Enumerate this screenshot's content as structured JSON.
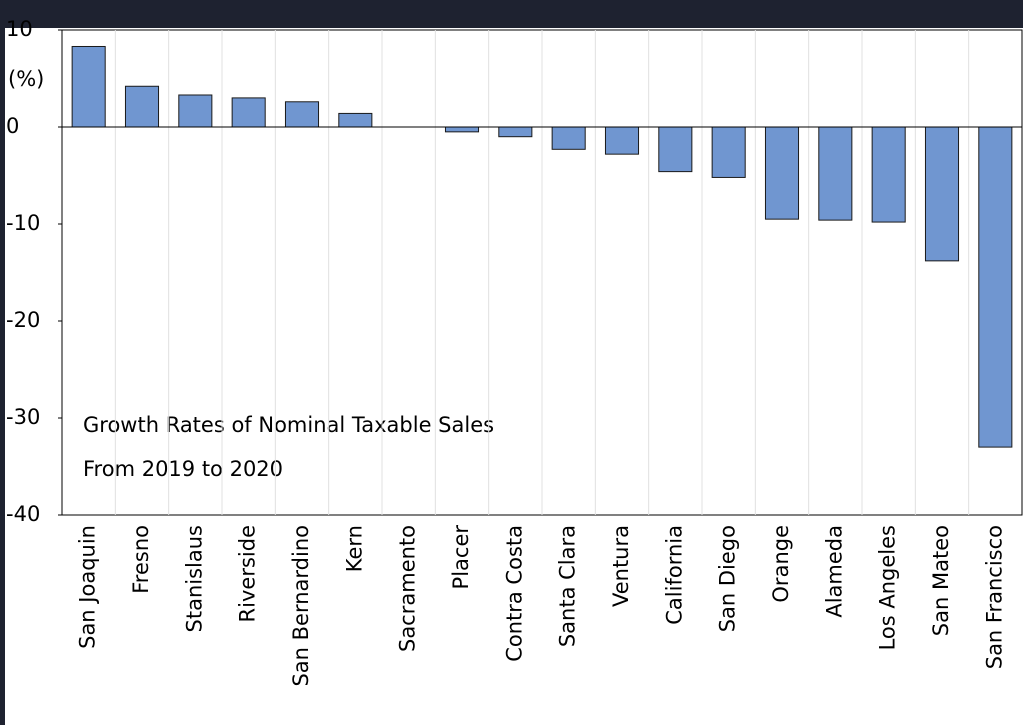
{
  "chart_data": {
    "type": "bar",
    "title": [
      "Growth Rates of Nominal Taxable Sales",
      "From 2019 to 2020"
    ],
    "y_label": "(%)",
    "categories": [
      "San Joaquin",
      "Fresno",
      "Stanislaus",
      "Riverside",
      "San Bernardino",
      "Kern",
      "Sacramento",
      "Placer",
      "Contra Costa",
      "Santa Clara",
      "Ventura",
      "California",
      "San Diego",
      "Orange",
      "Alameda",
      "Los Angeles",
      "San Mateo",
      "San Francisco"
    ],
    "values": [
      8.3,
      4.2,
      3.3,
      3.0,
      2.6,
      1.4,
      0,
      -0.5,
      -1.0,
      -2.3,
      -2.8,
      -4.6,
      -5.2,
      -9.5,
      -9.6,
      -9.8,
      -13.8,
      -33.0
    ],
    "color": "#7096d0",
    "ylim": [
      -40,
      10
    ],
    "yticks": [
      -40,
      -30,
      -20,
      -10,
      0,
      10
    ],
    "grid": true
  }
}
